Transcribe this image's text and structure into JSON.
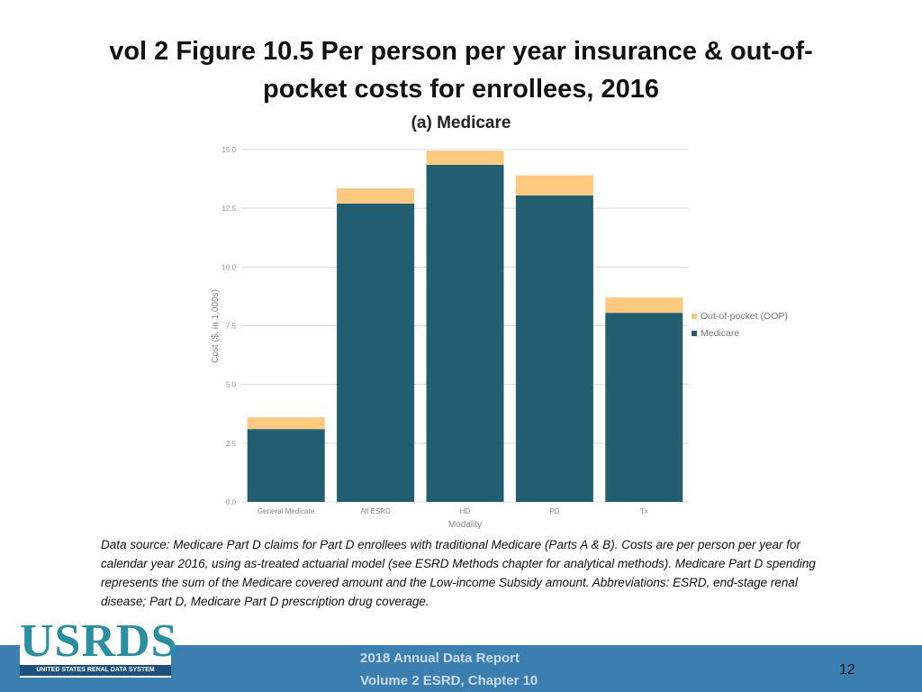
{
  "slide": {
    "title": "vol 2 Figure 10.5 Per person per year insurance & out-of-pocket costs for enrollees, 2016",
    "caption": "Data source: Medicare Part D claims for Part D enrollees with traditional Medicare (Parts A & B). Costs are per person per year for calendar year 2016, using as-treated actuarial model (see ESRD Methods chapter for analytical methods). Medicare Part D spending represents the sum of the Medicare covered amount and the Low-income Subsidy amount. Abbreviations: ESRD, end-stage renal disease; Part D, Medicare Part D prescription drug coverage.",
    "footer_line1": "2018 Annual Data Report",
    "footer_line2": "Volume 2 ESRD, Chapter 10",
    "page_number": "12",
    "logo_text": "USRDS",
    "logo_subtext": "UNITED STATES RENAL DATA SYSTEM",
    "logo_color": "#2a8fa0",
    "footer_color": "#3a7fb0"
  },
  "chart_data": {
    "type": "bar",
    "stacked": true,
    "title": "(a) Medicare",
    "xlabel": "Modality",
    "ylabel": "Cost ($, in 1,000s)",
    "ylim": [
      0,
      15
    ],
    "yticks": [
      "0.0",
      "2.5",
      "5.0",
      "7.5",
      "10.0",
      "12.5",
      "15.0"
    ],
    "categories": [
      "General Medicare",
      "All ESRD",
      "HD",
      "PD",
      "Tx"
    ],
    "series": [
      {
        "name": "Medicare",
        "color": "#215e72",
        "values": [
          3.1,
          12.7,
          14.35,
          13.05,
          8.05
        ]
      },
      {
        "name": "Out-of-pocket (OOP)",
        "color": "#fdc97e",
        "values": [
          0.5,
          0.65,
          0.6,
          0.85,
          0.65
        ]
      }
    ],
    "legend_order": [
      "Out-of-pocket (OOP)",
      "Medicare"
    ],
    "legend_position": "right",
    "grid": true
  }
}
